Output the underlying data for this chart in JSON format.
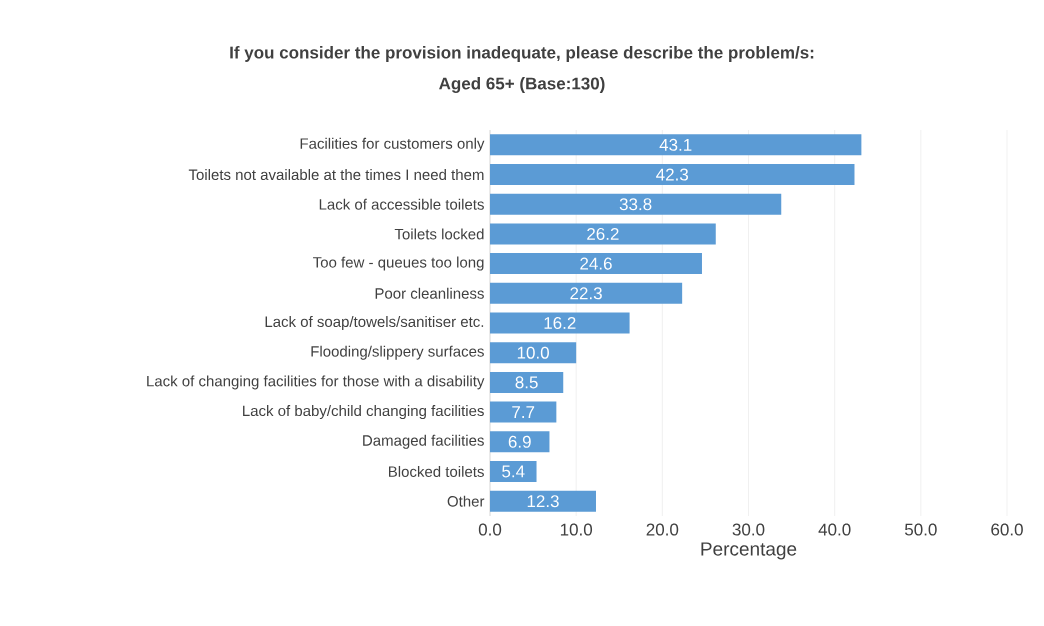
{
  "chart_data": {
    "type": "bar",
    "orientation": "horizontal",
    "title": "If you consider the provision inadequate, please describe the problem/s:",
    "subtitle": "Aged 65+ (Base:130)",
    "xlabel": "Percentage",
    "categories": [
      "Facilities for customers only",
      "Toilets not available at the times I need them",
      "Lack of accessible toilets",
      "Toilets locked",
      "Too few - queues too long",
      "Poor cleanliness",
      "Lack of soap/towels/sanitiser etc.",
      "Flooding/slippery surfaces",
      "Lack of changing facilities for those with a disability",
      "Lack of baby/child changing facilities",
      "Damaged facilities",
      "Blocked toilets",
      "Other"
    ],
    "values": [
      43.1,
      42.3,
      33.8,
      26.2,
      24.6,
      22.3,
      16.2,
      10.0,
      8.5,
      7.7,
      6.9,
      5.4,
      12.3
    ],
    "value_labels": [
      "43.1",
      "42.3",
      "33.8",
      "26.2",
      "24.6",
      "22.3",
      "16.2",
      "10.0",
      "8.5",
      "7.7",
      "6.9",
      "5.4",
      "12.3"
    ],
    "color": "#5b9bd5",
    "xlim": [
      0,
      60
    ],
    "xticks": [
      {
        "value": 0,
        "label": "0.0"
      },
      {
        "value": 10,
        "label": "10.0"
      },
      {
        "value": 20,
        "label": "20.0"
      },
      {
        "value": 30,
        "label": "30.0"
      },
      {
        "value": 40,
        "label": "40.0"
      },
      {
        "value": 50,
        "label": "50.0"
      },
      {
        "value": 60,
        "label": "60.0"
      }
    ],
    "grid": "x"
  }
}
